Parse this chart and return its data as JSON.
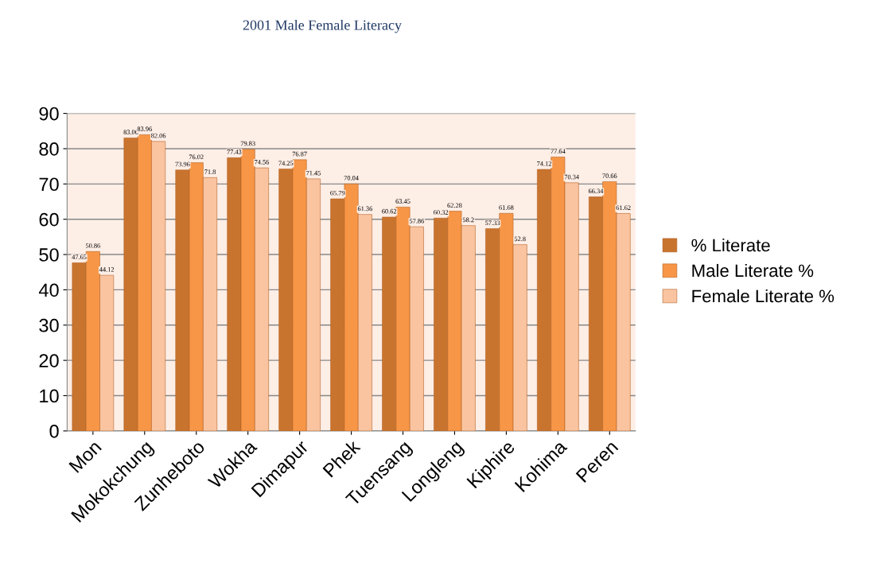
{
  "chart_data": {
    "type": "bar",
    "title": "2001 Male Female Literacy",
    "categories": [
      "Mon",
      "Mokokchung",
      "Zunheboto",
      "Wokha",
      "Dimapur",
      "Phek",
      "Tuensang",
      "Longleng",
      "Kiphire",
      "Kohima",
      "Peren"
    ],
    "series": [
      {
        "name": "% Literate",
        "color": "#c9742e",
        "values": [
          47.65,
          83.06,
          73.96,
          77.43,
          74.25,
          65.79,
          60.62,
          60.32,
          57.33,
          74.12,
          66.34
        ]
      },
      {
        "name": "Male Literate %",
        "color": "#f79646",
        "values": [
          50.86,
          83.96,
          76.02,
          79.83,
          76.87,
          70.04,
          63.45,
          62.28,
          61.68,
          77.64,
          70.66
        ]
      },
      {
        "name": "Female Literate %",
        "color": "#fac4a0",
        "values": [
          44.12,
          82.06,
          71.8,
          74.56,
          71.45,
          61.36,
          57.86,
          58.2,
          52.8,
          70.34,
          61.62
        ]
      }
    ],
    "ylim": [
      0,
      90
    ],
    "yticks": [
      0,
      10,
      20,
      30,
      40,
      50,
      60,
      70,
      80,
      90
    ],
    "grid": "y",
    "legend": "right",
    "data_labels": true
  }
}
